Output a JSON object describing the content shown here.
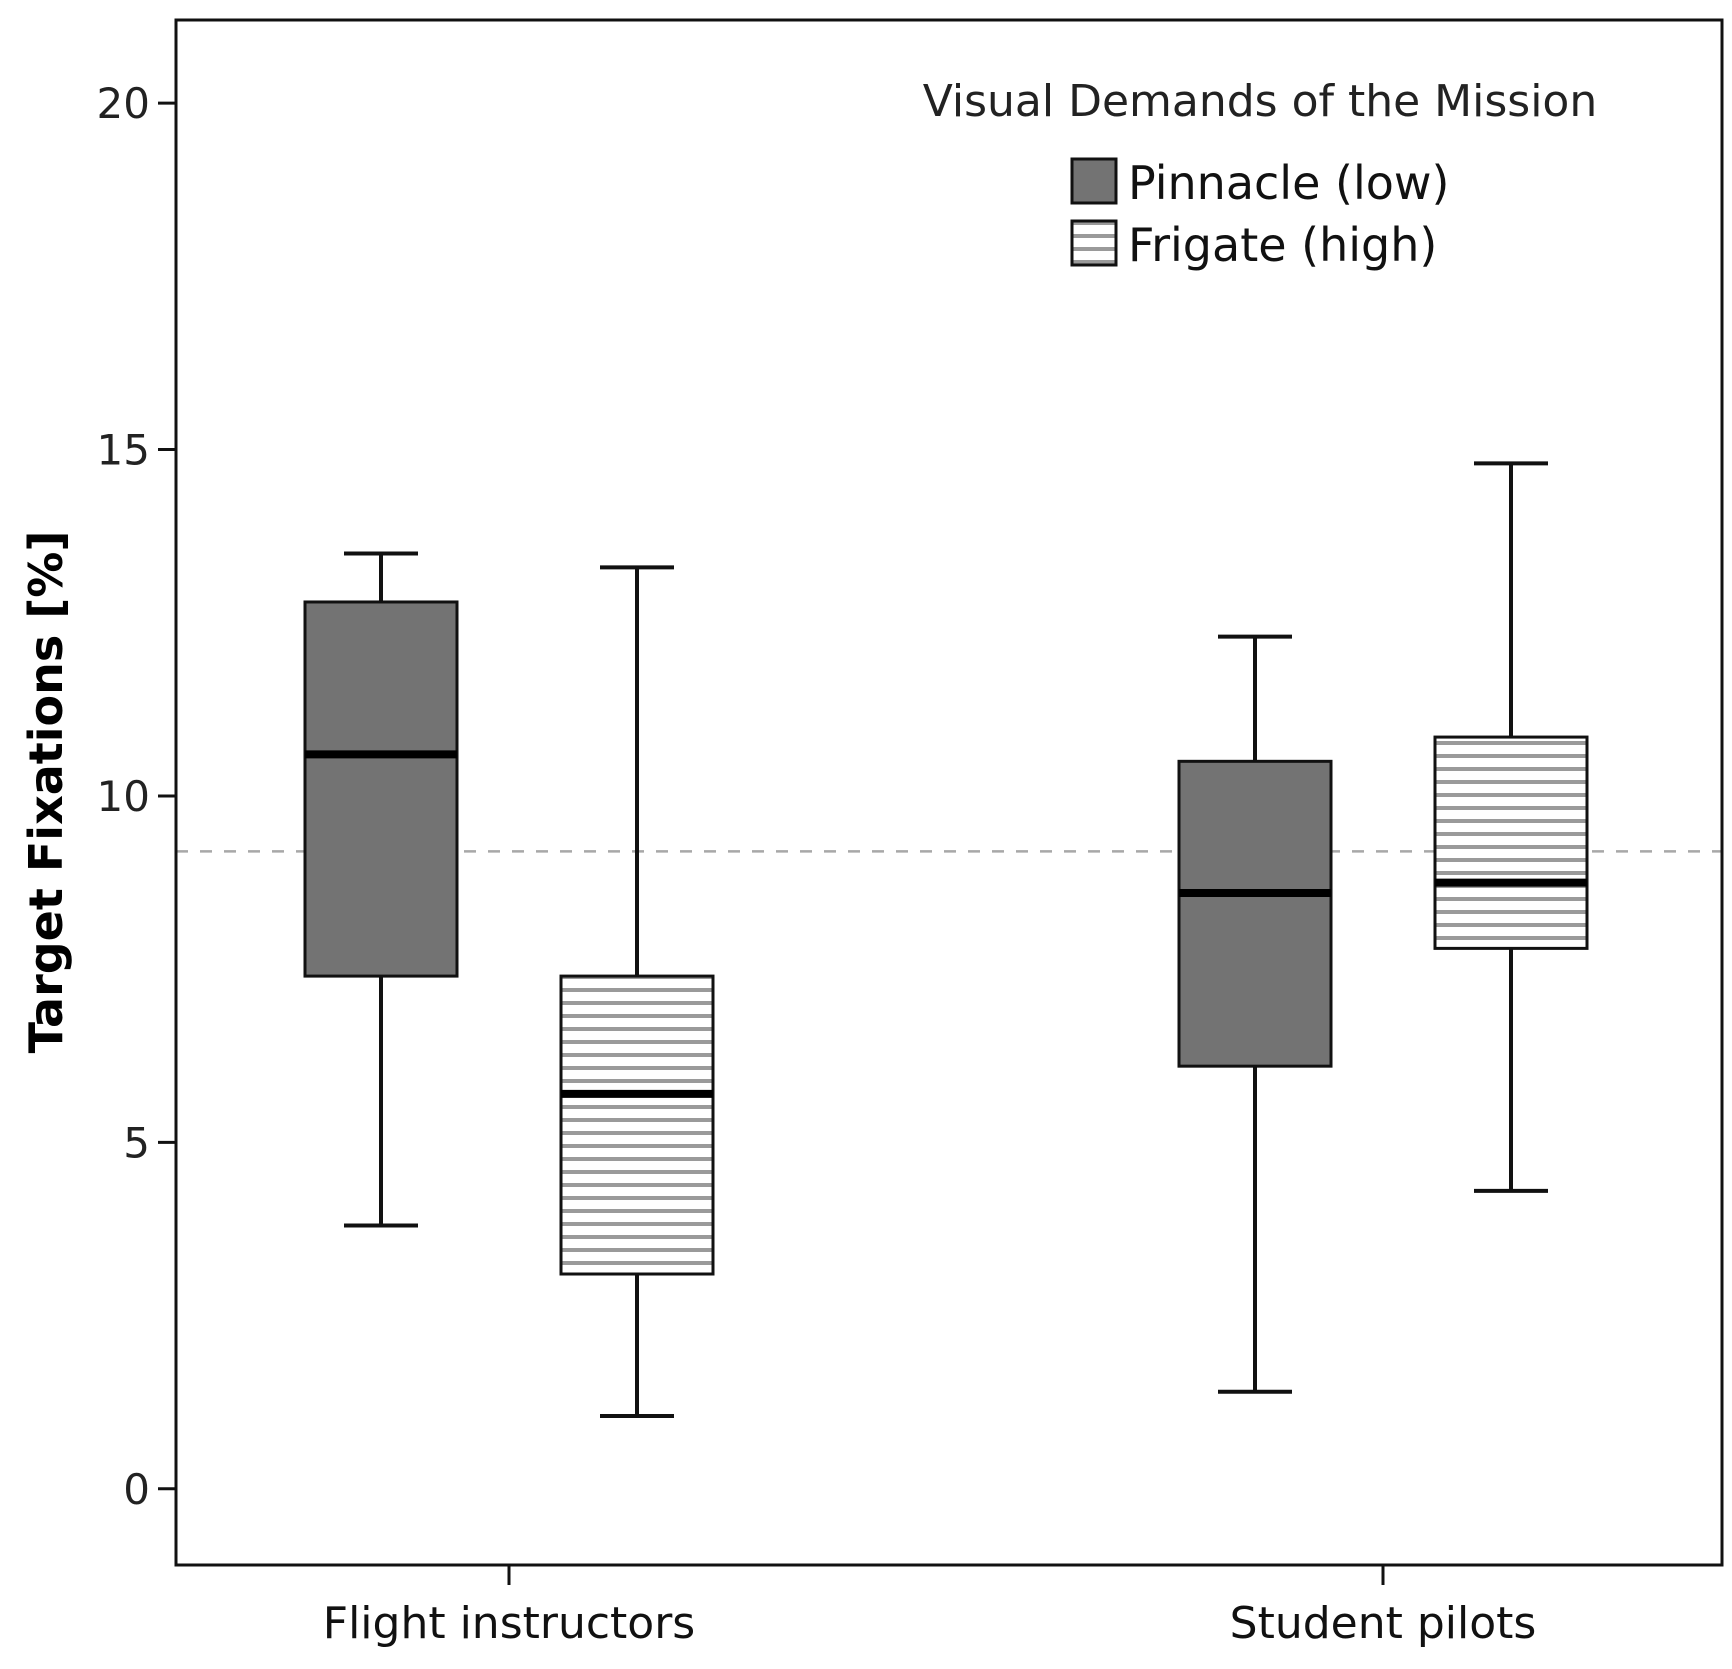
{
  "chart_data": {
    "type": "boxplot",
    "ylabel": "Target Fixations [%]",
    "xlabel": "",
    "ylim": [
      -1.1,
      21.2
    ],
    "yticks": [
      0,
      5,
      10,
      15,
      20
    ],
    "categories": [
      "Flight instructors",
      "Student pilots"
    ],
    "legend": {
      "title": "Visual Demands of the Mission",
      "position": "top-right"
    },
    "reference_line": 9.2,
    "series": [
      {
        "name": "Pinnacle (low)",
        "fill": "#737373",
        "pattern": "solid",
        "boxes": [
          {
            "whisker_low": 3.8,
            "q1": 7.4,
            "median": 10.6,
            "q3": 12.8,
            "whisker_high": 13.5
          },
          {
            "whisker_low": 1.4,
            "q1": 6.1,
            "median": 8.6,
            "q3": 10.5,
            "whisker_high": 12.3
          }
        ]
      },
      {
        "name": "Frigate (high)",
        "fill": "#ffffff",
        "pattern": "horizontal-stripes",
        "boxes": [
          {
            "whisker_low": 1.05,
            "q1": 3.1,
            "median": 5.7,
            "q3": 7.4,
            "whisker_high": 13.3
          },
          {
            "whisker_low": 4.3,
            "q1": 7.8,
            "median": 8.75,
            "q3": 10.85,
            "whisker_high": 14.8
          }
        ]
      }
    ]
  }
}
